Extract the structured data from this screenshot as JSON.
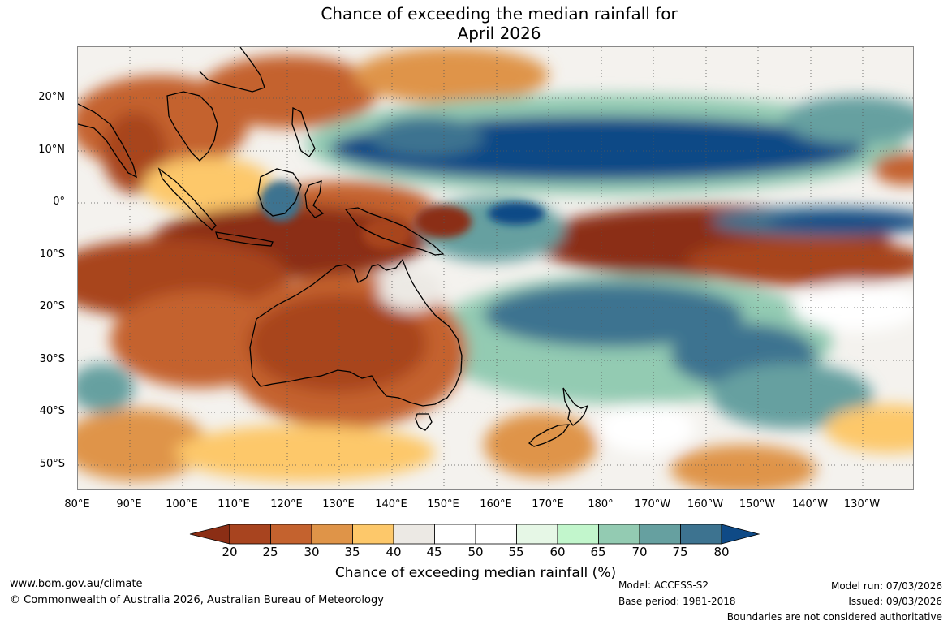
{
  "title": {
    "line1": "Chance of exceeding the median rainfall for",
    "line2": "April 2026"
  },
  "map": {
    "lon_ticks": [
      "80°E",
      "90°E",
      "100°E",
      "110°E",
      "120°E",
      "130°E",
      "140°E",
      "150°E",
      "160°E",
      "170°E",
      "180°",
      "170°W",
      "160°W",
      "150°W",
      "140°W",
      "130°W"
    ],
    "lat_ticks": [
      "20°N",
      "10°N",
      "0°",
      "10°S",
      "20°S",
      "30°S",
      "40°S",
      "50°S"
    ]
  },
  "chart_data": {
    "type": "heatmap",
    "variable": "Chance of exceeding median rainfall (%)",
    "colorbar": {
      "label": "Chance of exceeding median rainfall (%)",
      "ticks": [
        "20",
        "25",
        "30",
        "35",
        "40",
        "45",
        "50",
        "55",
        "60",
        "65",
        "70",
        "75",
        "80"
      ],
      "bins": [
        {
          "range": "<20",
          "color": "#8b2e15"
        },
        {
          "range": "20-25",
          "color": "#a8441f"
        },
        {
          "range": "25-30",
          "color": "#c4622e"
        },
        {
          "range": "30-35",
          "color": "#df9448"
        },
        {
          "range": "35-40",
          "color": "#fdc86a"
        },
        {
          "range": "40-45",
          "color": "#ece9e4"
        },
        {
          "range": "45-50",
          "color": "#ffffff"
        },
        {
          "range": "50-55",
          "color": "#ffffff"
        },
        {
          "range": "55-60",
          "color": "#e6f7e6"
        },
        {
          "range": "60-65",
          "color": "#c2f6cc"
        },
        {
          "range": "65-70",
          "color": "#93cbb2"
        },
        {
          "range": "70-75",
          "color": "#66a0a0"
        },
        {
          "range": "75-80",
          "color": "#3d7390"
        },
        {
          "range": ">80",
          "color": "#0f4a86"
        }
      ]
    },
    "lon_range": [
      80,
      240
    ],
    "lat_range": [
      -55,
      30
    ],
    "regions": [
      {
        "name": "north-pacific-wet-band",
        "lon": [
          135,
          222
        ],
        "lat": [
          3,
          17
        ],
        "value": 85
      },
      {
        "name": "north-pacific-wet-fringe",
        "lon": [
          125,
          230
        ],
        "lat": [
          0,
          20
        ],
        "value": 70
      },
      {
        "name": "equatorial-east-pacific-wet",
        "lon": [
          195,
          240
        ],
        "lat": [
          -7,
          -1
        ],
        "value": 82
      },
      {
        "name": "equatorial-pacific-dry",
        "lon": [
          170,
          235
        ],
        "lat": [
          -12,
          3
        ],
        "value": 18
      },
      {
        "name": "south-pacific-wet-band",
        "lon": [
          150,
          210
        ],
        "lat": [
          -33,
          -8
        ],
        "value": 75
      },
      {
        "name": "australia-dry",
        "lon": [
          112,
          155
        ],
        "lat": [
          -40,
          -12
        ],
        "value": 23
      },
      {
        "name": "indonesia-dry",
        "lon": [
          105,
          145
        ],
        "lat": [
          -10,
          3
        ],
        "value": 20
      },
      {
        "name": "indian-ocean-dry",
        "lon": [
          80,
          115
        ],
        "lat": [
          -25,
          -8
        ],
        "value": 22
      },
      {
        "name": "south-asia-dry",
        "lon": [
          85,
          110
        ],
        "lat": [
          12,
          30
        ],
        "value": 26
      },
      {
        "name": "south-china-sea-dry",
        "lon": [
          115,
          145
        ],
        "lat": [
          18,
          30
        ],
        "value": 27
      },
      {
        "name": "southern-ocean-dry",
        "lon": [
          80,
          100
        ],
        "lat": [
          -55,
          -38
        ],
        "value": 30
      },
      {
        "name": "tasman-dry",
        "lon": [
          155,
          175
        ],
        "lat": [
          -50,
          -38
        ],
        "value": 33
      }
    ]
  },
  "footer": {
    "url": "www.bom.gov.au/climate",
    "copyright": "© Commonwealth of Australia 2026, Australian Bureau of Meteorology",
    "model": "Model: ACCESS-S2",
    "base_period": "Base period: 1981-2018",
    "model_run": "Model run: 07/03/2026",
    "issued": "Issued: 09/03/2026",
    "disclaimer": "Boundaries are not considered authoritative"
  }
}
